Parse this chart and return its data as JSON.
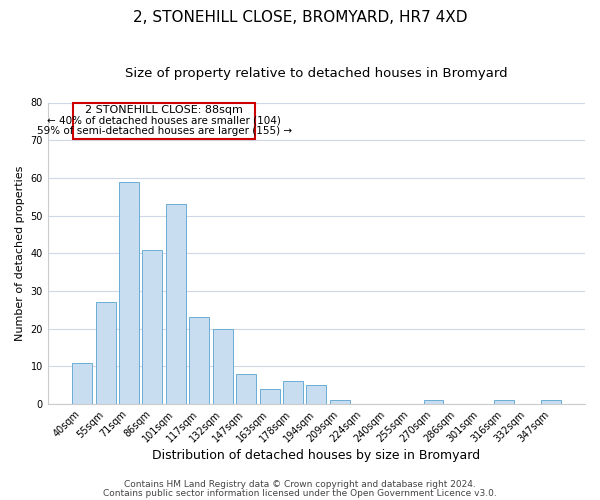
{
  "title": "2, STONEHILL CLOSE, BROMYARD, HR7 4XD",
  "subtitle": "Size of property relative to detached houses in Bromyard",
  "xlabel": "Distribution of detached houses by size in Bromyard",
  "ylabel": "Number of detached properties",
  "bar_labels": [
    "40sqm",
    "55sqm",
    "71sqm",
    "86sqm",
    "101sqm",
    "117sqm",
    "132sqm",
    "147sqm",
    "163sqm",
    "178sqm",
    "194sqm",
    "209sqm",
    "224sqm",
    "240sqm",
    "255sqm",
    "270sqm",
    "286sqm",
    "301sqm",
    "316sqm",
    "332sqm",
    "347sqm"
  ],
  "bar_values": [
    11,
    27,
    59,
    41,
    53,
    23,
    20,
    8,
    4,
    6,
    5,
    1,
    0,
    0,
    0,
    1,
    0,
    0,
    1,
    0,
    1
  ],
  "bar_color": "#c8ddf0",
  "bar_edge_color": "#6aaed6",
  "ylim": [
    0,
    80
  ],
  "yticks": [
    0,
    10,
    20,
    30,
    40,
    50,
    60,
    70,
    80
  ],
  "annotation_title": "2 STONEHILL CLOSE: 88sqm",
  "annotation_line1": "← 40% of detached houses are smaller (104)",
  "annotation_line2": "59% of semi-detached houses are larger (155) →",
  "annotation_box_edge": "#cc0000",
  "footer_line1": "Contains HM Land Registry data © Crown copyright and database right 2024.",
  "footer_line2": "Contains public sector information licensed under the Open Government Licence v3.0.",
  "background_color": "#ffffff",
  "grid_color": "#d0d8e8",
  "title_fontsize": 11,
  "subtitle_fontsize": 9.5,
  "xlabel_fontsize": 9,
  "ylabel_fontsize": 8,
  "tick_fontsize": 7,
  "annot_title_fontsize": 8,
  "annot_text_fontsize": 7.5,
  "footer_fontsize": 6.5
}
